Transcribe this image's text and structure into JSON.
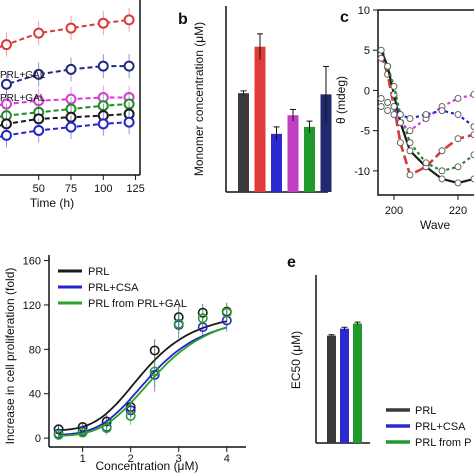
{
  "panel_letters": {
    "b": "b",
    "c": "c",
    "e": "e"
  },
  "colors": {
    "black": "#1a1a1a",
    "red": "#d9393a",
    "blue": "#2626c8",
    "magenta": "#d63bd6",
    "green": "#1f8a2a",
    "navy": "#1f2a80",
    "green_bright": "#2aa12a"
  },
  "chart_data": [
    {
      "id": "a",
      "type": "line",
      "xlabel": "Time (h)",
      "xticks": [
        50,
        75,
        100,
        125
      ],
      "xlim": [
        20,
        130
      ],
      "ylim": [
        0,
        100
      ],
      "labels": [
        "PRL+GAL",
        "PRL+GAL"
      ],
      "series": [
        {
          "color": "#d9393a",
          "x": [
            0,
            25,
            50,
            75,
            100,
            120
          ],
          "y": [
            72,
            79,
            86,
            89,
            92,
            94
          ]
        },
        {
          "color": "#1f2a80",
          "x": [
            0,
            25,
            50,
            75,
            100,
            120
          ],
          "y": [
            44,
            55,
            61,
            64,
            66,
            66
          ]
        },
        {
          "color": "#d63bd6",
          "x": [
            0,
            25,
            50,
            75,
            100,
            120
          ],
          "y": [
            40,
            43,
            45,
            46,
            47,
            47
          ]
        },
        {
          "color": "#1f8a2a",
          "x": [
            0,
            25,
            50,
            75,
            100,
            120
          ],
          "y": [
            33,
            36,
            38,
            40,
            42,
            43
          ]
        },
        {
          "color": "#1a1a1a",
          "x": [
            0,
            25,
            50,
            75,
            100,
            120
          ],
          "y": [
            26,
            31,
            34,
            35,
            36,
            37
          ]
        },
        {
          "color": "#2626c8",
          "x": [
            0,
            25,
            50,
            75,
            100,
            120
          ],
          "y": [
            20,
            24,
            27,
            29,
            31,
            32
          ]
        }
      ]
    },
    {
      "id": "b",
      "type": "bar",
      "ylabel": "Monomer concentration (μM)",
      "ylim": [
        0,
        80
      ],
      "values": [
        42.5,
        62.5,
        25,
        33,
        28,
        42
      ],
      "errors": [
        1,
        5.5,
        3,
        2.5,
        2.5,
        12
      ],
      "colors": [
        "#3a3a3a",
        "#e03a3a",
        "#2a2ad0",
        "#c43ec4",
        "#1f9a2a",
        "#20296e"
      ]
    },
    {
      "id": "c",
      "type": "line",
      "xlabel": "Wave",
      "ylabel": "θ (mdeg)",
      "xticks": [
        200,
        220
      ],
      "yticks": [
        -10,
        -5,
        0,
        5,
        10
      ],
      "xlim": [
        195,
        245
      ],
      "ylim": [
        -13,
        10
      ],
      "series": [
        {
          "color": "#d9393a",
          "x": [
            196,
            198,
            200,
            202,
            205,
            210,
            215,
            220,
            225,
            230,
            235,
            240
          ],
          "y": [
            4.5,
            2,
            -2,
            -6.5,
            -10.5,
            -9.5,
            -7.5,
            -6,
            -5.5,
            -5.5,
            -5.5,
            -5.5
          ]
        },
        {
          "color": "#1a1a1a",
          "x": [
            196,
            198,
            200,
            202,
            205,
            210,
            215,
            220,
            225,
            230,
            235,
            240
          ],
          "y": [
            5,
            3,
            -0.5,
            -4,
            -7.5,
            -9.5,
            -11,
            -11.5,
            -11,
            -9,
            -8,
            -8
          ]
        },
        {
          "color": "#1f8a2a",
          "x": [
            196,
            198,
            200,
            202,
            205,
            210,
            215,
            220,
            225,
            230,
            235,
            240
          ],
          "y": [
            4,
            3,
            0.5,
            -3,
            -6.5,
            -9,
            -10,
            -9.5,
            -8,
            -6.5,
            -6,
            -6
          ]
        },
        {
          "color": "#d63bd6",
          "x": [
            196,
            198,
            200,
            202,
            205,
            210,
            215,
            220,
            225,
            230,
            235,
            240
          ],
          "y": [
            -2,
            -2.5,
            -3,
            -4,
            -5,
            -3.5,
            -2,
            -1,
            -0.5,
            -0.5,
            -0.5,
            -0.5
          ]
        },
        {
          "color": "#2626c8",
          "x": [
            196,
            198,
            200,
            202,
            205,
            210,
            215,
            220,
            225,
            230,
            235,
            240
          ],
          "y": [
            -1,
            -1.5,
            -2,
            -3,
            -3.5,
            -3,
            -2.5,
            -3,
            -4.5,
            -5,
            -5,
            -5
          ]
        }
      ]
    },
    {
      "id": "d",
      "type": "scatter",
      "xlabel": "Concentration (μM)",
      "ylabel": "Increase in cell proliferation (fold)",
      "xticks": [
        1,
        2,
        3,
        4
      ],
      "yticks": [
        0,
        40,
        80,
        120,
        160
      ],
      "xlim": [
        0.3,
        4.4
      ],
      "ylim": [
        -8,
        165
      ],
      "legend": [
        "PRL",
        "PRL+CSA",
        "PRL from PRL+GAL"
      ],
      "series": [
        {
          "name": "PRL",
          "color": "#1a1a1a",
          "x": [
            0.5,
            1,
            1.5,
            2,
            2.5,
            3,
            3.5,
            4
          ],
          "y": [
            8,
            10,
            15,
            28,
            79,
            109,
            113,
            114
          ],
          "err": [
            4,
            4,
            6,
            7,
            10,
            10,
            8,
            8
          ],
          "ec50": 2.3,
          "top": 115,
          "bottom": 7,
          "hill": 4.2
        },
        {
          "name": "PRL+CSA",
          "color": "#2626c8",
          "x": [
            0.5,
            1,
            1.5,
            2,
            2.5,
            3,
            3.5,
            4
          ],
          "y": [
            4,
            6,
            10,
            25,
            57,
            102,
            100,
            106
          ],
          "err": [
            6,
            5,
            6,
            6,
            15,
            12,
            10,
            10
          ],
          "ec50": 2.45,
          "top": 112,
          "bottom": 3,
          "hill": 4.2
        },
        {
          "name": "PRL from PRL+GAL",
          "color": "#2aa12a",
          "x": [
            0.5,
            1,
            1.5,
            2,
            2.5,
            3,
            3.5,
            4
          ],
          "y": [
            3,
            5,
            9,
            20,
            60,
            103,
            108,
            113
          ],
          "err": [
            4,
            4,
            6,
            8,
            14,
            10,
            8,
            8
          ],
          "ec50": 2.56,
          "top": 115,
          "bottom": 2,
          "hill": 4.2
        }
      ]
    },
    {
      "id": "e",
      "type": "bar",
      "ylabel": "EC50 (μM)",
      "ylim": [
        0,
        3.6
      ],
      "values": [
        2.3,
        2.45,
        2.56
      ],
      "errors": [
        0.02,
        0.03,
        0.03
      ],
      "colors": [
        "#3a3a3a",
        "#2a2ad0",
        "#1f9a2a"
      ],
      "legend": [
        "PRL",
        "PRL+CSA",
        "PRL from P"
      ]
    }
  ]
}
